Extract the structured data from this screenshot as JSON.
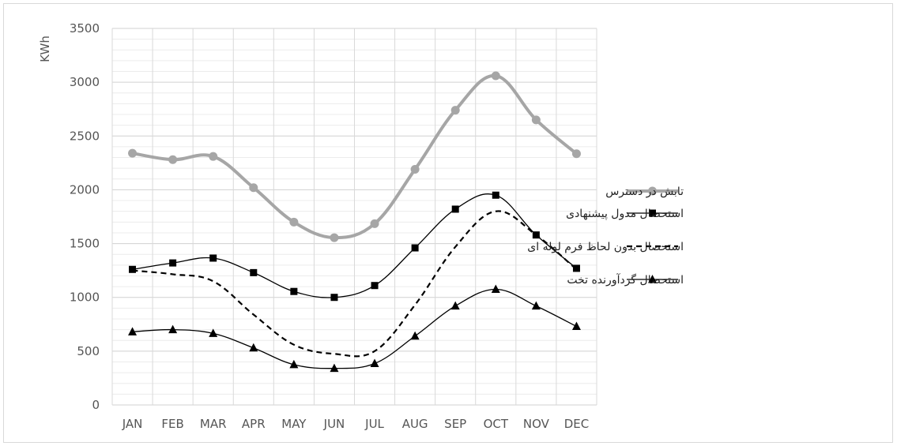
{
  "chart_data": {
    "type": "line",
    "ylabel": "KWh",
    "ylim": [
      0,
      3500
    ],
    "yticks": [
      0,
      500,
      1000,
      1500,
      2000,
      2500,
      3000,
      3500
    ],
    "categories": [
      "JAN",
      "FEB",
      "MAR",
      "APR",
      "MAY",
      "JUN",
      "JUL",
      "AUG",
      "SEP",
      "OCT",
      "NOV",
      "DEC"
    ],
    "grid": true,
    "legend_position": "right",
    "series": [
      {
        "name": "تابش در دسترس",
        "color": "#a6a6a6",
        "style": "solid-thick",
        "marker": "circle",
        "values": [
          2340,
          2280,
          2310,
          2020,
          1700,
          1555,
          1685,
          2190,
          2740,
          3060,
          2650,
          2335
        ]
      },
      {
        "name": "استحصال مدول پیشنهادی",
        "color": "#000000",
        "style": "solid",
        "marker": "square",
        "values": [
          1260,
          1320,
          1365,
          1230,
          1055,
          1000,
          1110,
          1460,
          1820,
          1950,
          1580,
          1270
        ]
      },
      {
        "name": "استحصال بدون لحاظ فرم لوله ای",
        "color": "#000000",
        "style": "dashed",
        "marker": "none",
        "values": [
          1250,
          1215,
          1150,
          840,
          560,
          475,
          500,
          930,
          1470,
          1800,
          1580,
          1260
        ]
      },
      {
        "name": "استحصال گردآورنده تخت",
        "color": "#000000",
        "style": "solid",
        "marker": "triangle",
        "values": [
          680,
          700,
          665,
          530,
          375,
          340,
          385,
          640,
          920,
          1075,
          920,
          730
        ]
      }
    ]
  }
}
